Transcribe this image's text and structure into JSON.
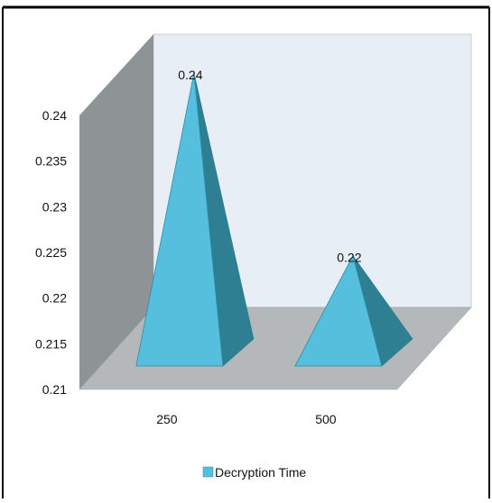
{
  "chart_data": {
    "type": "bar",
    "style": "3d-pyramid",
    "categories": [
      "250",
      "500"
    ],
    "series": [
      {
        "name": "Decryption Time",
        "values": [
          0.24,
          0.22
        ]
      }
    ],
    "data_labels": [
      "0.24",
      "0.22"
    ],
    "ylim": [
      0.21,
      0.24
    ],
    "yticks": [
      0.21,
      0.215,
      0.22,
      0.225,
      0.23,
      0.235,
      0.24
    ],
    "ytick_labels": [
      "0.21",
      "0.215",
      "0.22",
      "0.225",
      "0.23",
      "0.235",
      "0.24"
    ],
    "title": "",
    "xlabel": "",
    "ylabel": "",
    "grid": false,
    "legend_position": "bottom",
    "colors": {
      "pyramid_front": "#55bfdd",
      "pyramid_side": "#2f7f92",
      "pyramid_stroke": "#2a8da8",
      "back_wall": "#e7eef6",
      "side_wall": "#8e9496",
      "floor": "#b4b8bb",
      "frame_border": "#000000",
      "legend_swatch": "#55bfdd"
    }
  }
}
